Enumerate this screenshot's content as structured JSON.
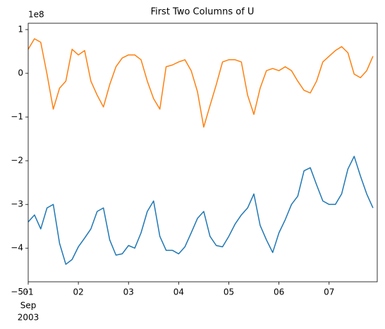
{
  "chart_data": {
    "type": "line",
    "title": "First Two Columns of U",
    "offset_label": "1e8",
    "x": [
      0,
      0.125,
      0.25,
      0.375,
      0.5,
      0.625,
      0.75,
      0.875,
      1,
      1.125,
      1.25,
      1.375,
      1.5,
      1.625,
      1.75,
      1.875,
      2,
      2.125,
      2.25,
      2.375,
      2.5,
      2.625,
      2.75,
      2.875,
      3,
      3.125,
      3.25,
      3.375,
      3.5,
      3.625,
      3.75,
      3.875,
      4,
      4.125,
      4.25,
      4.375,
      4.5,
      4.625,
      4.75,
      4.875,
      5,
      5.125,
      5.25,
      5.375,
      5.5,
      5.625,
      5.75,
      5.875,
      6,
      6.125,
      6.25,
      6.375,
      6.5,
      6.625,
      6.75,
      6.875
    ],
    "series": [
      {
        "color": "#1f77b4",
        "values": [
          -3.4,
          -3.24,
          -3.56,
          -3.08,
          -3.0,
          -3.89,
          -4.37,
          -4.26,
          -3.97,
          -3.77,
          -3.56,
          -3.16,
          -3.08,
          -3.81,
          -4.16,
          -4.13,
          -3.94,
          -4.0,
          -3.65,
          -3.16,
          -2.92,
          -3.73,
          -4.05,
          -4.05,
          -4.13,
          -3.97,
          -3.65,
          -3.32,
          -3.16,
          -3.73,
          -3.94,
          -3.97,
          -3.73,
          -3.45,
          -3.24,
          -3.08,
          -2.76,
          -3.48,
          -3.81,
          -4.1,
          -3.65,
          -3.35,
          -3.0,
          -2.81,
          -2.23,
          -2.16,
          -2.55,
          -2.92,
          -3.0,
          -3.0,
          -2.76,
          -2.19,
          -1.9,
          -2.35,
          -2.76,
          -3.08
        ]
      },
      {
        "color": "#ff7f0e",
        "values": [
          0.55,
          0.79,
          0.71,
          -0.02,
          -0.82,
          -0.34,
          -0.18,
          0.55,
          0.42,
          0.52,
          -0.18,
          -0.5,
          -0.77,
          -0.26,
          0.15,
          0.35,
          0.42,
          0.42,
          0.31,
          -0.18,
          -0.58,
          -0.82,
          0.15,
          0.19,
          0.26,
          0.31,
          0.06,
          -0.42,
          -1.23,
          -0.74,
          -0.26,
          0.26,
          0.31,
          0.31,
          0.26,
          -0.5,
          -0.94,
          -0.34,
          0.06,
          0.11,
          0.06,
          0.15,
          0.06,
          -0.18,
          -0.39,
          -0.45,
          -0.18,
          0.26,
          0.39,
          0.52,
          0.61,
          0.47,
          -0.02,
          -0.1,
          0.06,
          0.39
        ]
      }
    ],
    "xlim": [
      0,
      6.96
    ],
    "xticks": [
      {
        "value": 0,
        "label": "01"
      },
      {
        "value": 1,
        "label": "02"
      },
      {
        "value": 2,
        "label": "03"
      },
      {
        "value": 3,
        "label": "04"
      },
      {
        "value": 4,
        "label": "05"
      },
      {
        "value": 5,
        "label": "06"
      },
      {
        "value": 6,
        "label": "07"
      }
    ],
    "month_label": "Sep",
    "year_label": "2003",
    "ylim": [
      -4.77,
      1.145
    ],
    "yticks": [
      {
        "value": -5,
        "label": "−5"
      },
      {
        "value": -4,
        "label": "−4"
      },
      {
        "value": -3,
        "label": "−3"
      },
      {
        "value": -2,
        "label": "−2"
      },
      {
        "value": -1,
        "label": "−1"
      },
      0,
      1
    ]
  }
}
